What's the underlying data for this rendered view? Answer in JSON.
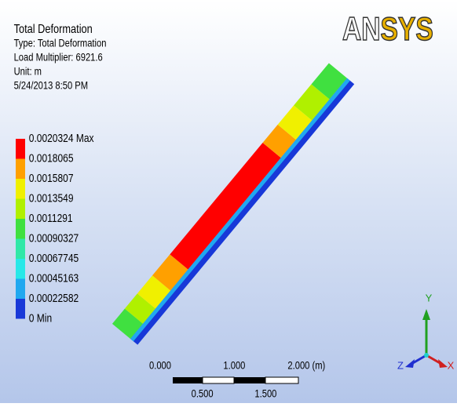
{
  "header": {
    "title": "Total Deformation",
    "lines": [
      "Type: Total Deformation",
      "Load Multiplier: 6921.6",
      "Unit: m",
      "5/24/2013 8:50 PM"
    ]
  },
  "logo": [
    "AN",
    "SYS"
  ],
  "legend": {
    "labels": [
      "0.0020324 Max",
      "0.0018065",
      "0.0015807",
      "0.0013549",
      "0.0011291",
      "0.00090327",
      "0.00067745",
      "0.00045163",
      "0.00022582",
      "0 Min"
    ],
    "colors": [
      "#ff0000",
      "#ffa000",
      "#f0f000",
      "#b0f000",
      "#40e040",
      "#30e8a8",
      "#28e8e8",
      "#20a8f0",
      "#1838d8"
    ]
  },
  "scale": {
    "top": [
      "0.000",
      "1.000",
      "2.000 (m)"
    ],
    "bottom": [
      "0.500",
      "1.500"
    ]
  },
  "triad": {
    "y": "Y",
    "z": "Z",
    "x": "X"
  }
}
